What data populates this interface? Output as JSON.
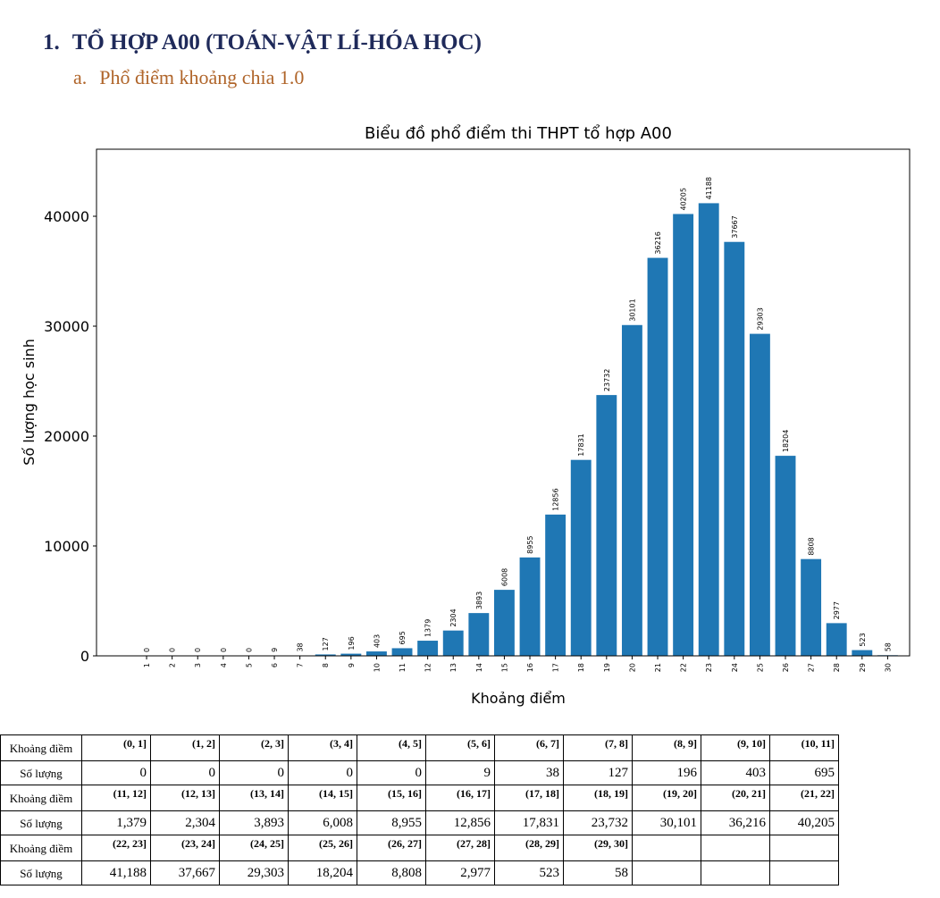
{
  "heading": {
    "number": "1.",
    "text": "TỔ HỢP A00 (TOÁN-VẬT LÍ-HÓA HỌC)"
  },
  "subheading": {
    "number": "a.",
    "text": "Phổ điểm khoảng chia 1.0"
  },
  "chart_data": {
    "type": "bar",
    "title": "Biểu đồ phổ điểm thi THPT tổ hợp A00",
    "xlabel": "Khoảng điểm",
    "ylabel": "Số lượng học sinh",
    "categories": [
      "1",
      "2",
      "3",
      "4",
      "5",
      "6",
      "7",
      "8",
      "9",
      "10",
      "11",
      "12",
      "13",
      "14",
      "15",
      "16",
      "17",
      "18",
      "19",
      "20",
      "21",
      "22",
      "23",
      "24",
      "25",
      "26",
      "27",
      "28",
      "29",
      "30"
    ],
    "values": [
      0,
      0,
      0,
      0,
      0,
      9,
      38,
      127,
      196,
      403,
      695,
      1379,
      2304,
      3893,
      6008,
      8955,
      12856,
      17831,
      23732,
      30101,
      36216,
      40205,
      41188,
      37667,
      29303,
      18204,
      8808,
      2977,
      523,
      58
    ],
    "yticks": [
      0,
      10000,
      20000,
      30000,
      40000
    ],
    "ylim": [
      0,
      46100
    ],
    "xlim": [
      -0.96,
      30.86
    ],
    "color": "#1f77b4",
    "grid": false
  },
  "table": {
    "row_label_range": "Khoảng điềm",
    "row_label_count": "Số lượng",
    "rows": [
      {
        "ranges": [
          "(0, 1]",
          "(1, 2]",
          "(2, 3]",
          "(3, 4]",
          "(4, 5]",
          "(5, 6]",
          "(6, 7]",
          "(7, 8]",
          "(8, 9]",
          "(9, 10]",
          "(10, 11]"
        ],
        "counts": [
          "0",
          "0",
          "0",
          "0",
          "0",
          "9",
          "38",
          "127",
          "196",
          "403",
          "695"
        ]
      },
      {
        "ranges": [
          "(11, 12]",
          "(12, 13]",
          "(13, 14]",
          "(14, 15]",
          "(15, 16]",
          "(16, 17]",
          "(17, 18]",
          "(18, 19]",
          "(19, 20]",
          "(20, 21]",
          "(21, 22]"
        ],
        "counts": [
          "1,379",
          "2,304",
          "3,893",
          "6,008",
          "8,955",
          "12,856",
          "17,831",
          "23,732",
          "30,101",
          "36,216",
          "40,205"
        ]
      },
      {
        "ranges": [
          "(22, 23]",
          "(23, 24]",
          "(24, 25]",
          "(25, 26]",
          "(26, 27]",
          "(27, 28]",
          "(28, 29]",
          "(29, 30]",
          "",
          "",
          ""
        ],
        "counts": [
          "41,188",
          "37,667",
          "29,303",
          "18,204",
          "8,808",
          "2,977",
          "523",
          "58",
          "",
          "",
          ""
        ]
      }
    ]
  }
}
